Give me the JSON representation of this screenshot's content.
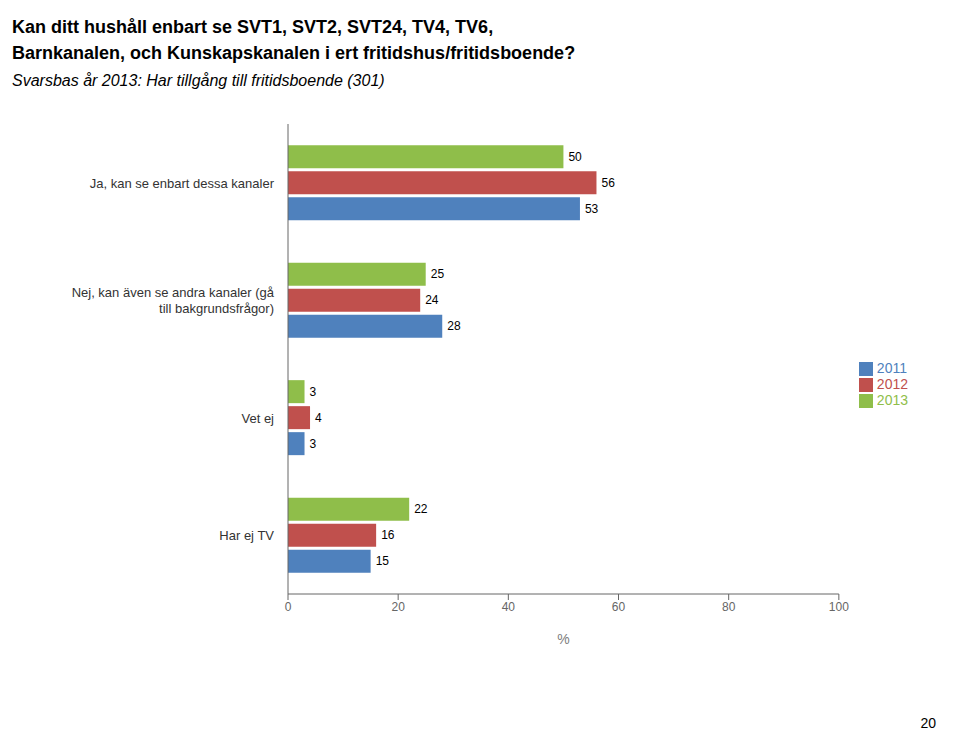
{
  "chart_data": {
    "type": "bar",
    "orientation": "horizontal",
    "title": "Kan ditt hushåll enbart se SVT1, SVT2, SVT24, TV4, TV6,\nBarnkanalen, och Kunskapskanalen i ert fritidshus/fritidsboende?",
    "subtitle": "Svarsbas år 2013: Har tillgång till fritidsboende (301)",
    "categories": [
      "Ja, kan se enbart dessa kanaler",
      "Nej, kan även se andra kanaler (gå\ntill bakgrundsfrågor)",
      "Vet ej",
      "Har ej TV"
    ],
    "series": [
      {
        "name": "2013",
        "color": "#8fbe4a",
        "values": [
          50,
          25,
          3,
          22
        ]
      },
      {
        "name": "2012",
        "color": "#c0504d",
        "values": [
          56,
          24,
          4,
          16
        ]
      },
      {
        "name": "2011",
        "color": "#4f81bd",
        "values": [
          53,
          28,
          3,
          15
        ]
      }
    ],
    "xlim": [
      0,
      100
    ],
    "xticks": [
      0,
      20,
      40,
      60,
      80,
      100
    ],
    "xlabel": "%",
    "data_labels": true,
    "legend": "right",
    "grid": false,
    "annotations": [
      "20"
    ]
  }
}
